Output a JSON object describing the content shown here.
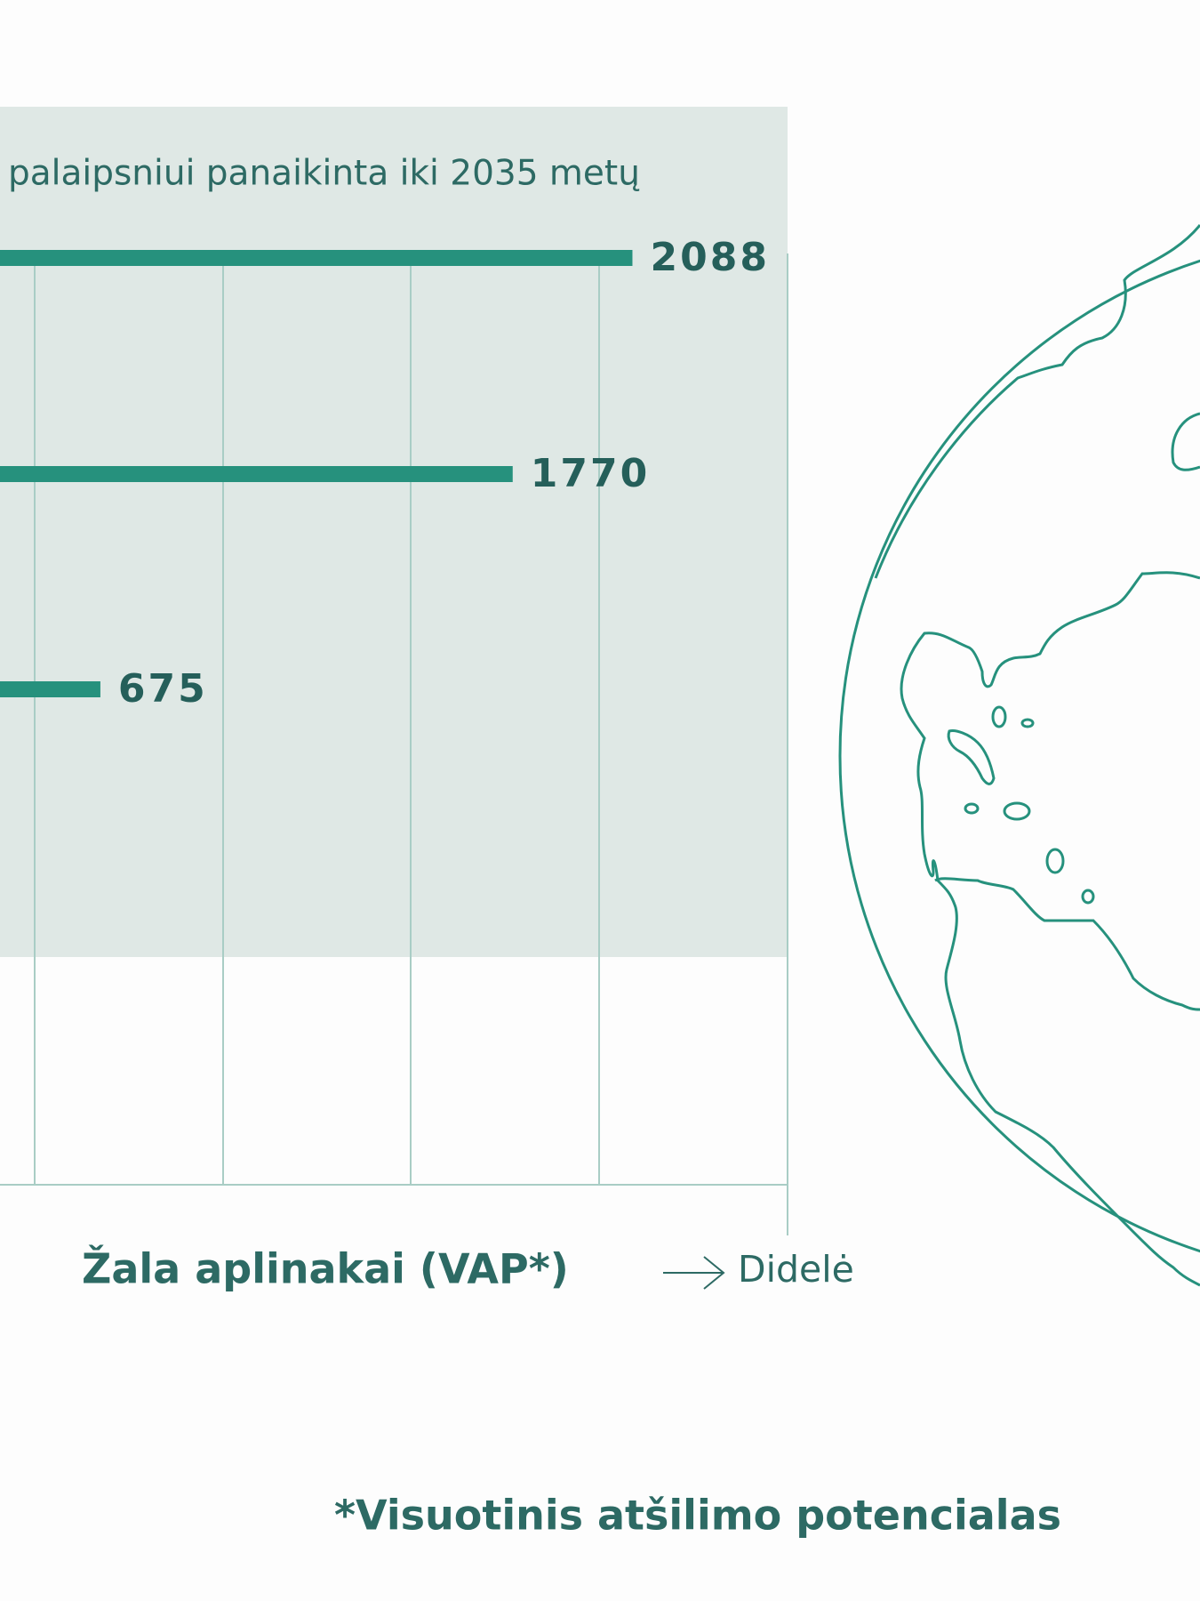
{
  "chart_data": {
    "type": "bar",
    "orientation": "horizontal",
    "subtitle": "palaipsniui panaikinta iki 2035 metų",
    "categories": [
      null,
      null,
      null
    ],
    "values": [
      2088,
      1770,
      675
    ],
    "color": "#26917d",
    "xlim": [
      0,
      2500
    ],
    "xlabel": "Žala aplinakai (VAP*)",
    "annotation": "Didelė",
    "footnote": "*Visuotinis atšilimo potencialas"
  }
}
